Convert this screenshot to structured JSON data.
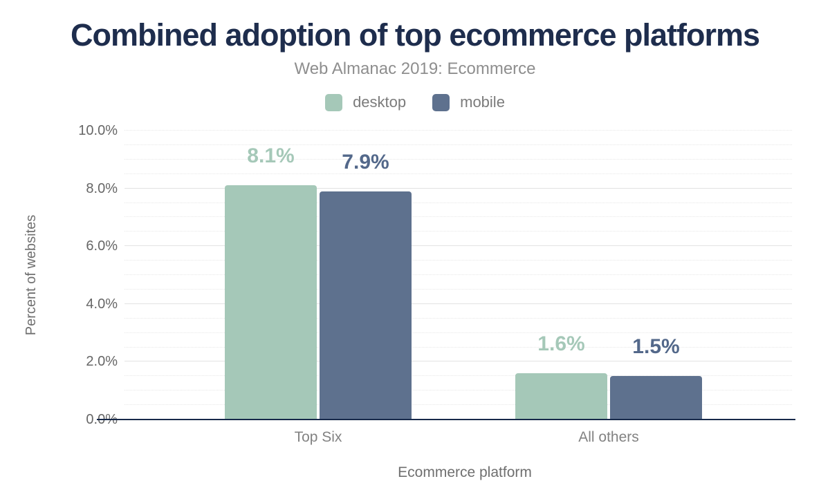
{
  "chart_data": {
    "type": "bar",
    "title": "Combined adoption of top ecommerce platforms",
    "subtitle": "Web Almanac 2019: Ecommerce",
    "categories": [
      "Top Six",
      "All others"
    ],
    "series": [
      {
        "name": "desktop",
        "values": [
          8.1,
          1.6
        ],
        "color": "#a5c8b8",
        "label_color": "#a5c8b8",
        "data_labels": [
          "8.1%",
          "1.6%"
        ]
      },
      {
        "name": "mobile",
        "values": [
          7.9,
          1.5
        ],
        "color": "#5e718e",
        "label_color": "#53688a",
        "data_labels": [
          "7.9%",
          "1.5%"
        ]
      }
    ],
    "xlabel": "Ecommerce platform",
    "ylabel": "Percent of websites",
    "ylim": [
      0,
      10
    ],
    "ytick_step": 2,
    "ytick_labels": [
      "0.0%",
      "2.0%",
      "4.0%",
      "6.0%",
      "8.0%",
      "10.0%"
    ],
    "grid": {
      "minor_step": 0.5,
      "on": true
    },
    "legend_position": "top",
    "colors": {
      "title": "#1e2d4d",
      "subtitle": "#8e8e8e",
      "axis_line": "#17294a",
      "gridline": "#e5e5e5",
      "tick_text": "#666666"
    }
  }
}
